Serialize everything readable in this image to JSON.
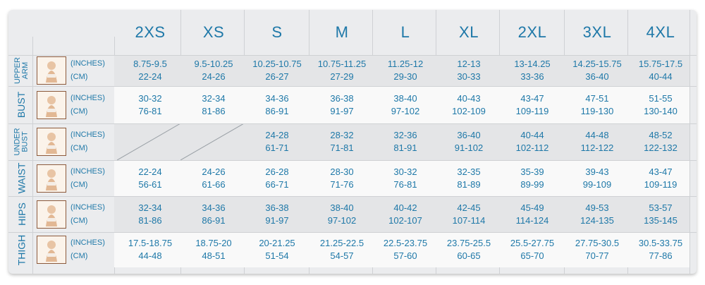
{
  "sizes": [
    "2XS",
    "XS",
    "S",
    "M",
    "L",
    "XL",
    "2XL",
    "3XL",
    "4XL"
  ],
  "units": {
    "inches": "(INCHES)",
    "cm": "(CM)"
  },
  "rows": [
    {
      "label_lines": [
        "UPPER",
        "ARM"
      ],
      "inches": [
        "8.75-9.5",
        "9.5-10.25",
        "10.25-10.75",
        "10.75-11.25",
        "11.25-12",
        "12-13",
        "13-14.25",
        "14.25-15.75",
        "15.75-17.5"
      ],
      "cm": [
        "22-24",
        "24-26",
        "26-27",
        "27-29",
        "29-30",
        "30-33",
        "33-36",
        "36-40",
        "40-44"
      ]
    },
    {
      "label_lines": [
        "BUST"
      ],
      "inches": [
        "30-32",
        "32-34",
        "34-36",
        "36-38",
        "38-40",
        "40-43",
        "43-47",
        "47-51",
        "51-55"
      ],
      "cm": [
        "76-81",
        "81-86",
        "86-91",
        "91-97",
        "97-102",
        "102-109",
        "109-119",
        "119-130",
        "130-140"
      ]
    },
    {
      "label_lines": [
        "UNDER",
        "BUST"
      ],
      "inches": [
        "",
        "",
        "24-28",
        "28-32",
        "32-36",
        "36-40",
        "40-44",
        "44-48",
        "48-52"
      ],
      "cm": [
        "",
        "",
        "61-71",
        "71-81",
        "81-91",
        "91-102",
        "102-112",
        "112-122",
        "122-132"
      ]
    },
    {
      "label_lines": [
        "WAIST"
      ],
      "inches": [
        "22-24",
        "24-26",
        "26-28",
        "28-30",
        "30-32",
        "32-35",
        "35-39",
        "39-43",
        "43-47"
      ],
      "cm": [
        "56-61",
        "61-66",
        "66-71",
        "71-76",
        "76-81",
        "81-89",
        "89-99",
        "99-109",
        "109-119"
      ]
    },
    {
      "label_lines": [
        "HIPS"
      ],
      "inches": [
        "32-34",
        "34-36",
        "36-38",
        "38-40",
        "40-42",
        "42-45",
        "45-49",
        "49-53",
        "53-57"
      ],
      "cm": [
        "81-86",
        "86-91",
        "91-97",
        "97-102",
        "102-107",
        "107-114",
        "114-124",
        "124-135",
        "135-145"
      ]
    },
    {
      "label_lines": [
        "THIGH"
      ],
      "inches": [
        "17.5-18.75",
        "18.75-20",
        "20-21.25",
        "21.25-22.5",
        "22.5-23.75",
        "23.75-25.5",
        "25.5-27.75",
        "27.75-30.5",
        "30.5-33.75"
      ],
      "cm": [
        "44-48",
        "48-51",
        "51-54",
        "54-57",
        "57-60",
        "60-65",
        "65-70",
        "70-77",
        "77-86"
      ]
    }
  ],
  "colors": {
    "text": "#1e78a8",
    "frame": "#ebecee"
  }
}
